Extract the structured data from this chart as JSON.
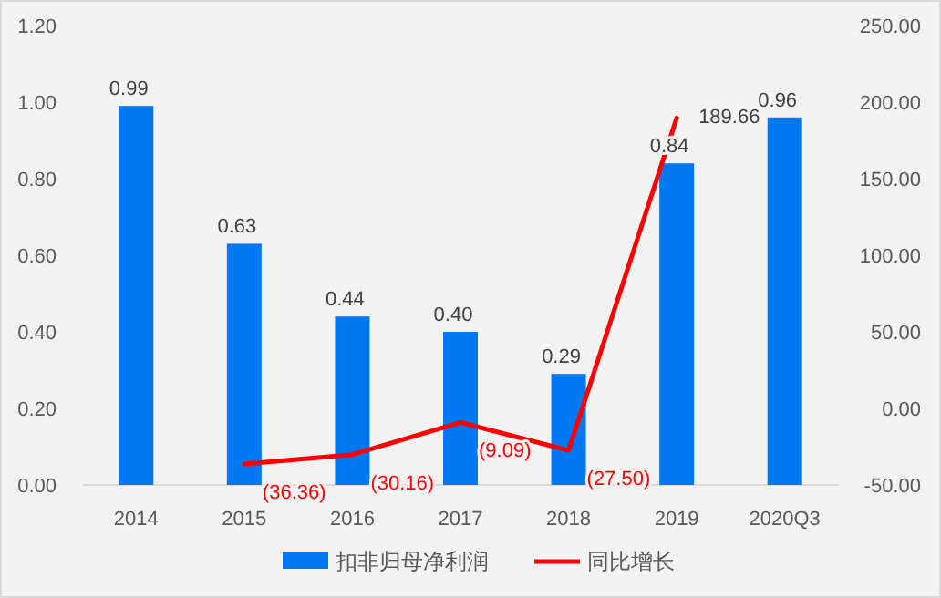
{
  "chart_data": {
    "type": "bar",
    "categories": [
      "2014",
      "2015",
      "2016",
      "2017",
      "2018",
      "2019",
      "2020Q3"
    ],
    "series": [
      {
        "name": "扣非归母净利润",
        "color": "#0078f0",
        "values": [
          0.99,
          0.63,
          0.44,
          0.4,
          0.29,
          0.84,
          0.96
        ],
        "value_labels": [
          "0.99",
          "0.63",
          "0.44",
          "0.40",
          "0.29",
          "0.84",
          "0.96"
        ]
      },
      {
        "name": "同比增长",
        "type": "line",
        "axis": "y2",
        "color": "#ff0000",
        "values": [
          null,
          -36.36,
          -30.16,
          -9.09,
          -27.5,
          189.66,
          null
        ],
        "value_labels": [
          null,
          "(36.36)",
          "(30.16)",
          "(9.09)",
          "(27.50)",
          "189.66",
          null
        ]
      }
    ],
    "ylim": [
      0,
      1.2
    ],
    "yticks": [
      {
        "value": 0,
        "label": "0.00"
      },
      {
        "value": 0.2,
        "label": "0.20"
      },
      {
        "value": 0.4,
        "label": "0.40"
      },
      {
        "value": 0.6,
        "label": "0.60"
      },
      {
        "value": 0.8,
        "label": "0.80"
      },
      {
        "value": 1.0,
        "label": "1.00"
      },
      {
        "value": 1.2,
        "label": "1.20"
      }
    ],
    "y2lim": [
      -50,
      250
    ],
    "y2ticks": [
      {
        "value": -50,
        "label": "-50.00"
      },
      {
        "value": 0,
        "label": "0.00"
      },
      {
        "value": 50,
        "label": "50.00"
      },
      {
        "value": 100,
        "label": "100.00"
      },
      {
        "value": 150,
        "label": "150.00"
      },
      {
        "value": 200,
        "label": "200.00"
      },
      {
        "value": 250,
        "label": "250.00"
      }
    ],
    "legend": "bottom"
  }
}
